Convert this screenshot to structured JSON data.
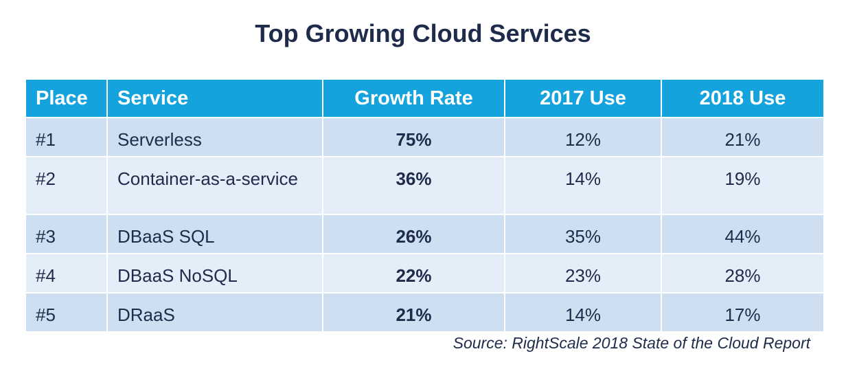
{
  "chart_data": {
    "type": "table",
    "title": "Top Growing Cloud Services",
    "columns": [
      "Place",
      "Service",
      "Growth Rate",
      "2017 Use",
      "2018 Use"
    ],
    "rows": [
      {
        "place": "#1",
        "service": "Serverless",
        "growth": "75%",
        "use2017": "12%",
        "use2018": "21%"
      },
      {
        "place": "#2",
        "service": "Container-as-a-service",
        "growth": "36%",
        "use2017": "14%",
        "use2018": "19%"
      },
      {
        "place": "#3",
        "service": "DBaaS SQL",
        "growth": "26%",
        "use2017": "35%",
        "use2018": "44%"
      },
      {
        "place": "#4",
        "service": "DBaaS NoSQL",
        "growth": "22%",
        "use2017": "23%",
        "use2018": "28%"
      },
      {
        "place": "#5",
        "service": "DRaaS",
        "growth": "21%",
        "use2017": "14%",
        "use2018": "17%"
      }
    ],
    "source": "Source: RightScale 2018 State of the Cloud Report"
  },
  "colors": {
    "header_bg": "#14a3dc",
    "row_dark": "#cddff0",
    "row_light": "#e4eef8",
    "text": "#1e2b4a"
  }
}
